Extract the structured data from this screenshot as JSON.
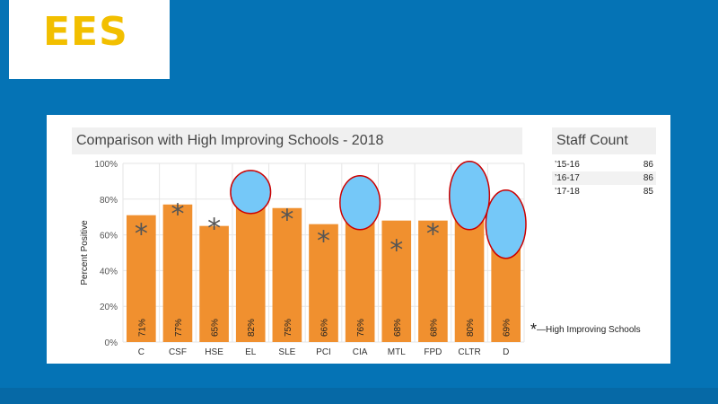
{
  "logo": {
    "text": "EES"
  },
  "colors": {
    "background": "#0573b5",
    "bar": "#f0902f",
    "circle_fill": "#75c8f8",
    "circle_stroke": "#cc0000",
    "star": "#555555",
    "logo": "#f2bf00"
  },
  "staff": {
    "title": "Staff Count",
    "rows": [
      {
        "label": "’15-16",
        "value": "86"
      },
      {
        "label": "’16-17",
        "value": "86"
      },
      {
        "label": "’17-18",
        "value": "85"
      }
    ]
  },
  "legend": {
    "symbol": "*",
    "text": "—High Improving Schools"
  },
  "chart_data": {
    "type": "bar",
    "title": "Comparison with High Improving Schools - 2018",
    "ylabel": "Percent Positive",
    "xlabel": "",
    "ylim": [
      0,
      100
    ],
    "yticks": [
      "0%",
      "20%",
      "40%",
      "60%",
      "80%",
      "100%"
    ],
    "grid": true,
    "categories": [
      "C",
      "CSF",
      "HSE",
      "EL",
      "SLE",
      "PCI",
      "CIA",
      "MTL",
      "FPD",
      "CLTR",
      "D"
    ],
    "values": [
      71,
      77,
      65,
      82,
      75,
      66,
      76,
      68,
      68,
      80,
      69
    ],
    "value_labels": [
      "71%",
      "77%",
      "65%",
      "82%",
      "75%",
      "66%",
      "76%",
      "68%",
      "68%",
      "80%",
      "69%"
    ],
    "high_improving_schools": [
      62,
      73,
      65,
      null,
      70,
      58,
      null,
      53,
      62,
      null,
      null
    ],
    "highlighted": [
      "EL",
      "CIA",
      "CLTR",
      "D"
    ]
  }
}
